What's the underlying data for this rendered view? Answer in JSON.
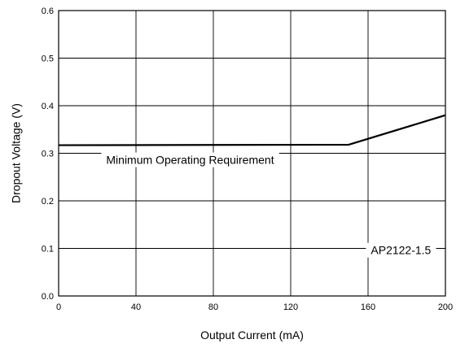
{
  "chart_data": {
    "type": "line",
    "xlabel": "Output Current (mA)",
    "ylabel": "Dropout Voltage (V)",
    "xlim": [
      0,
      200
    ],
    "ylim": [
      0,
      0.6
    ],
    "x_ticks": [
      0,
      40,
      80,
      120,
      160,
      200
    ],
    "x_tick_labels": [
      "0",
      "40",
      "80",
      "120",
      "160",
      "200"
    ],
    "y_ticks": [
      0,
      0.1,
      0.2,
      0.3,
      0.4,
      0.5,
      0.6
    ],
    "y_tick_labels": [
      "0.0",
      "0.1",
      "0.2",
      "0.3",
      "0.4",
      "0.5",
      "0.6"
    ],
    "grid": true,
    "series": [
      {
        "x": [
          0,
          150,
          200
        ],
        "y": [
          0.317,
          0.318,
          0.38
        ]
      }
    ],
    "annotations": [
      {
        "text": "Minimum Operating Requirement",
        "x": 68,
        "y": 0.284
      },
      {
        "text": "AP2122-1.5",
        "x": 177,
        "y": 0.094
      }
    ]
  }
}
